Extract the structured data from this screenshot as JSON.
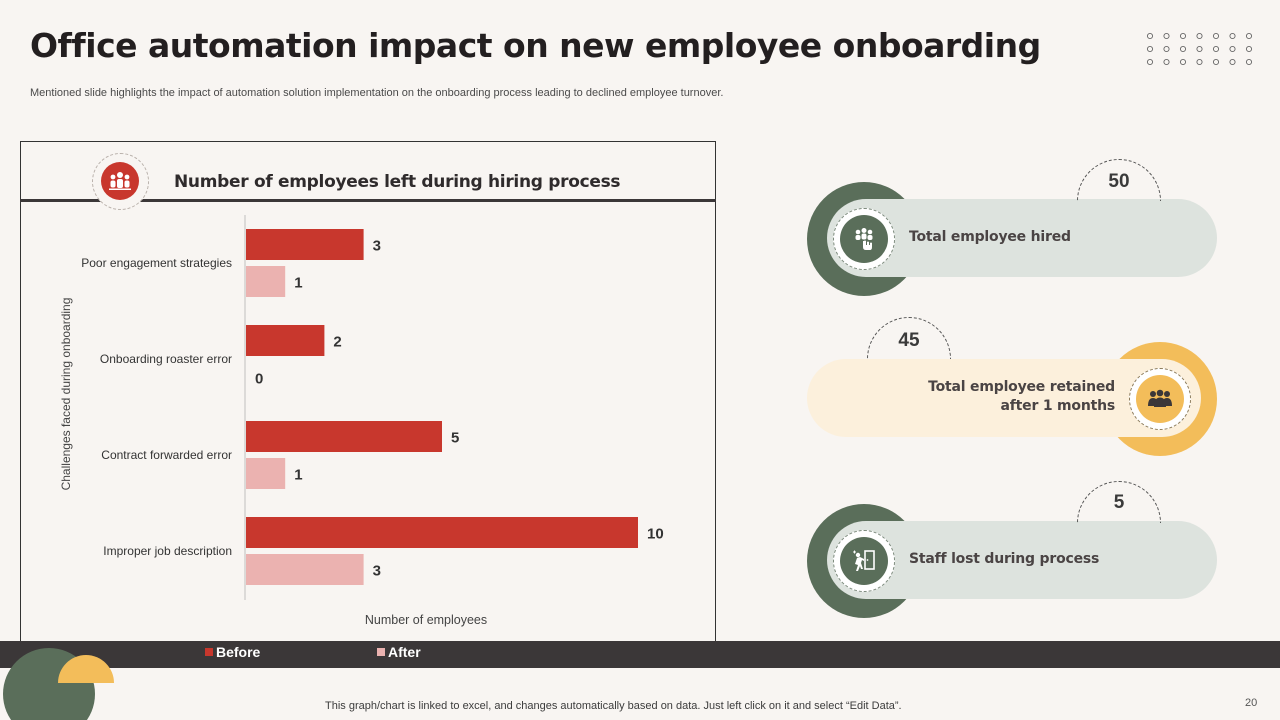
{
  "slide": {
    "title": "Office automation impact on new employee onboarding",
    "subtitle": "Mentioned slide highlights the impact of automation solution implementation on the onboarding process leading to declined employee turnover.",
    "footnote": "This graph/chart is linked to excel,  and changes automatically based on data. Just left click on it and select “Edit Data”.",
    "page_number": "20"
  },
  "chart_card": {
    "title": "Number of employees left during hiring process",
    "icon": "team-icon"
  },
  "chart_data": {
    "type": "bar",
    "orientation": "horizontal",
    "title": "Number of employees left during hiring process",
    "categories": [
      "Poor engagement strategies",
      "Onboarding roaster error",
      "Contract forwarded error",
      "Improper job description"
    ],
    "series": [
      {
        "name": "Before",
        "values": [
          3,
          2,
          5,
          10
        ],
        "color": "#c8372d"
      },
      {
        "name": "After",
        "values": [
          1,
          0,
          1,
          3
        ],
        "color": "#ebb2b0"
      }
    ],
    "xlabel": "Number of employees",
    "ylabel": "Challenges  faced  during  onboarding",
    "xlim": [
      0,
      10
    ],
    "legend": "bottom"
  },
  "legend": {
    "before_label": "Before",
    "after_label": "After"
  },
  "stats": [
    {
      "value": "50",
      "label_line1": "Total employee hired",
      "label_line2": "",
      "icon": "hand-group-icon",
      "ring_color": "#5a6e5a",
      "bg_color": "#dde3de"
    },
    {
      "value": "45",
      "label_line1": "Total employee retained",
      "label_line2": "after 1 months",
      "icon": "team-group-icon",
      "ring_color": "#f3bd5a",
      "bg_color": "#fcf0dc"
    },
    {
      "value": "5",
      "label_line1": "Staff lost during process",
      "label_line2": "",
      "icon": "exit-door-icon",
      "ring_color": "#5a6e5a",
      "bg_color": "#dde3de"
    }
  ],
  "colors": {
    "accent_red": "#c8372d",
    "accent_pink": "#ebb2b0",
    "dark_bar": "#3b3738",
    "green": "#5a6e5a",
    "yellow": "#f3bd5a"
  }
}
